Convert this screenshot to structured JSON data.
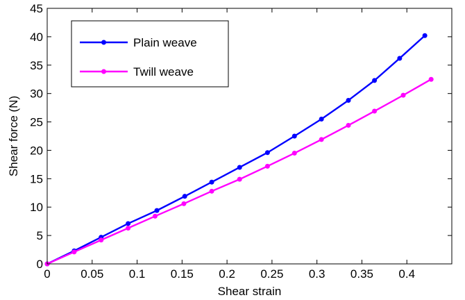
{
  "chart_data": {
    "type": "line",
    "title": "",
    "xlabel": "Shear strain",
    "ylabel": "Shear force (N)",
    "xlim": [
      0,
      0.45
    ],
    "ylim": [
      0,
      45
    ],
    "xticks": [
      0,
      0.05,
      0.1,
      0.15,
      0.2,
      0.25,
      0.3,
      0.35,
      0.4
    ],
    "xtick_labels": [
      "0",
      "0.05",
      "0.1",
      "0.15",
      "0.2",
      "0.25",
      "0.3",
      "0.35",
      "0.4"
    ],
    "yticks": [
      0,
      5,
      10,
      15,
      20,
      25,
      30,
      35,
      40,
      45
    ],
    "ytick_labels": [
      "0",
      "5",
      "10",
      "15",
      "20",
      "25",
      "30",
      "35",
      "40",
      "45"
    ],
    "grid": false,
    "legend": "top-left",
    "series": [
      {
        "name": "Plain weave",
        "color": "#0000ff",
        "marker": "dot",
        "x": [
          0,
          0.03,
          0.06,
          0.09,
          0.122,
          0.153,
          0.183,
          0.214,
          0.245,
          0.275,
          0.305,
          0.335,
          0.364,
          0.392,
          0.42
        ],
        "y": [
          0,
          2.3,
          4.7,
          7.1,
          9.4,
          11.9,
          14.4,
          17.0,
          19.6,
          22.5,
          25.5,
          28.8,
          32.3,
          36.2,
          40.2
        ]
      },
      {
        "name": "Twill weave",
        "color": "#ff00ff",
        "marker": "dot",
        "x": [
          0,
          0.03,
          0.06,
          0.09,
          0.12,
          0.152,
          0.183,
          0.214,
          0.245,
          0.275,
          0.305,
          0.335,
          0.364,
          0.396,
          0.427
        ],
        "y": [
          0,
          2.1,
          4.2,
          6.3,
          8.4,
          10.6,
          12.8,
          14.9,
          17.2,
          19.5,
          21.9,
          24.4,
          26.9,
          29.7,
          32.5
        ]
      }
    ]
  }
}
